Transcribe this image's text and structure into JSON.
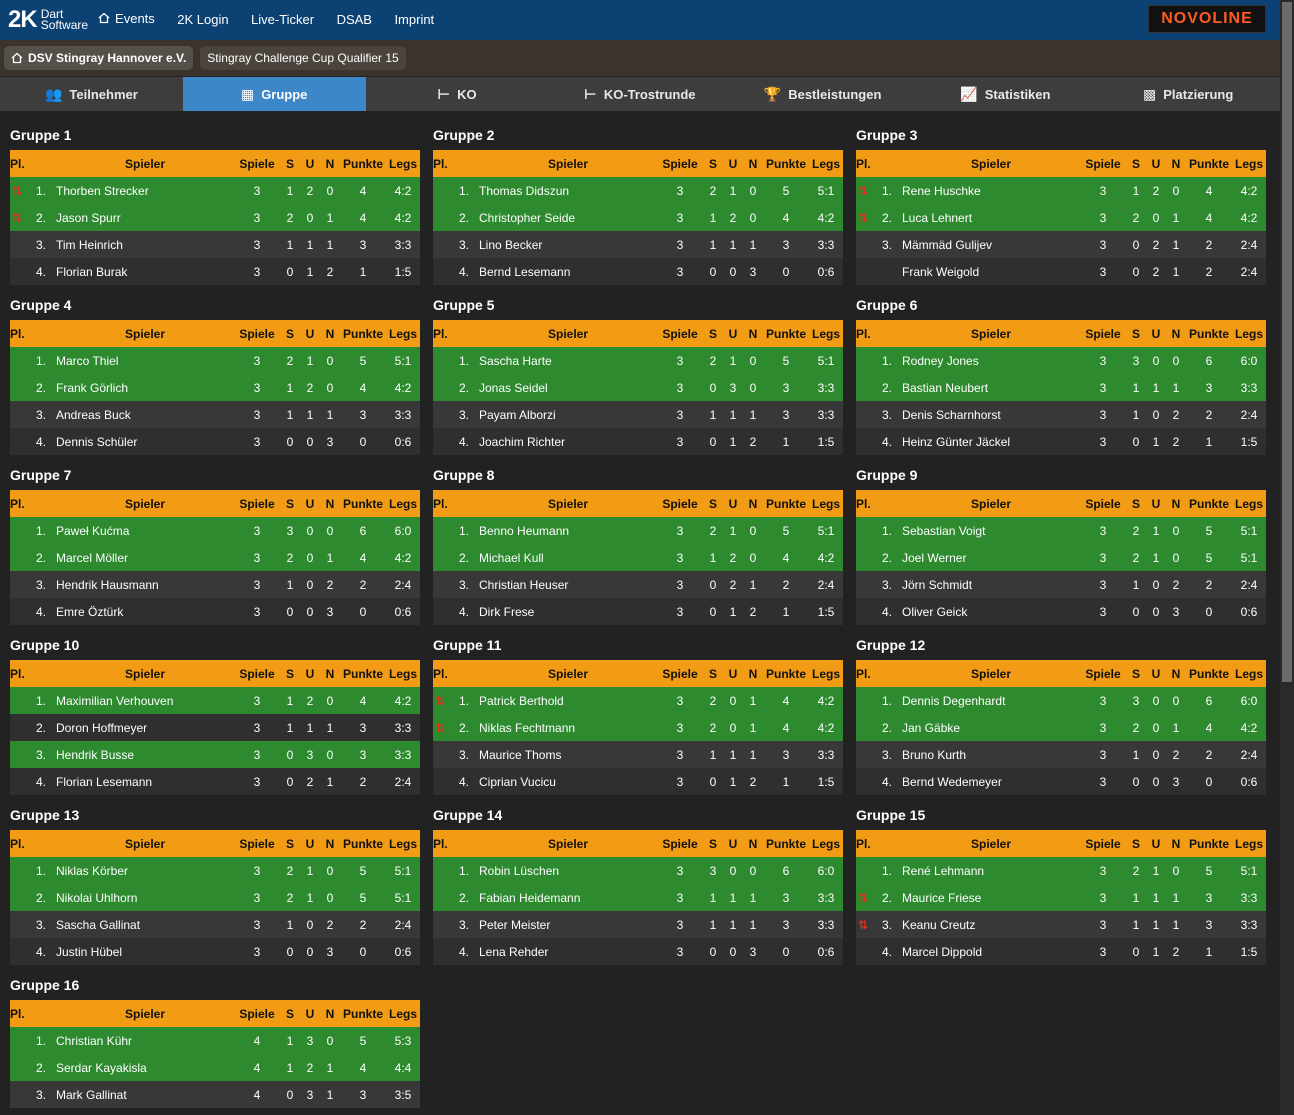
{
  "nav": {
    "logo_mark": "2K",
    "logo_line1": "Dart",
    "logo_line2": "Software",
    "items": [
      "Events",
      "2K Login",
      "Live-Ticker",
      "DSAB",
      "Imprint"
    ],
    "sponsor": "NOVOLINE"
  },
  "breadcrumb": [
    "DSV Stingray Hannover e.V.",
    "Stingray Challenge Cup Qualifier 15"
  ],
  "tabs": [
    "Teilnehmer",
    "Gruppe",
    "KO",
    "KO-Trostrunde",
    "Bestleistungen",
    "Statistiken",
    "Platzierung"
  ],
  "headers": [
    "Pl.",
    "Spieler",
    "Spiele",
    "S",
    "U",
    "N",
    "Punkte",
    "Legs"
  ],
  "groups": [
    {
      "title": "Gruppe 1",
      "rows": [
        {
          "pl": "1.",
          "arrow": "⇅",
          "name": "Thorben Strecker",
          "sp": "3",
          "s": "1",
          "u": "2",
          "n": "0",
          "pk": "4",
          "lg": "4:2",
          "q": true
        },
        {
          "pl": "2.",
          "arrow": "⇅",
          "name": "Jason Spurr",
          "sp": "3",
          "s": "2",
          "u": "0",
          "n": "1",
          "pk": "4",
          "lg": "4:2",
          "q": true
        },
        {
          "pl": "3.",
          "arrow": "",
          "name": "Tim Heinrich",
          "sp": "3",
          "s": "1",
          "u": "1",
          "n": "1",
          "pk": "3",
          "lg": "3:3",
          "q": false
        },
        {
          "pl": "4.",
          "arrow": "",
          "name": "Florian Burak",
          "sp": "3",
          "s": "0",
          "u": "1",
          "n": "2",
          "pk": "1",
          "lg": "1:5",
          "q": false
        }
      ]
    },
    {
      "title": "Gruppe 2",
      "rows": [
        {
          "pl": "1.",
          "arrow": "",
          "name": "Thomas Didszun",
          "sp": "3",
          "s": "2",
          "u": "1",
          "n": "0",
          "pk": "5",
          "lg": "5:1",
          "q": true
        },
        {
          "pl": "2.",
          "arrow": "",
          "name": "Christopher Seide",
          "sp": "3",
          "s": "1",
          "u": "2",
          "n": "0",
          "pk": "4",
          "lg": "4:2",
          "q": true
        },
        {
          "pl": "3.",
          "arrow": "",
          "name": "Lino Becker",
          "sp": "3",
          "s": "1",
          "u": "1",
          "n": "1",
          "pk": "3",
          "lg": "3:3",
          "q": false
        },
        {
          "pl": "4.",
          "arrow": "",
          "name": "Bernd Lesemann",
          "sp": "3",
          "s": "0",
          "u": "0",
          "n": "3",
          "pk": "0",
          "lg": "0:6",
          "q": false
        }
      ]
    },
    {
      "title": "Gruppe 3",
      "rows": [
        {
          "pl": "1.",
          "arrow": "⇅",
          "name": "Rene Huschke",
          "sp": "3",
          "s": "1",
          "u": "2",
          "n": "0",
          "pk": "4",
          "lg": "4:2",
          "q": true
        },
        {
          "pl": "2.",
          "arrow": "⇅",
          "name": "Luca Lehnert",
          "sp": "3",
          "s": "2",
          "u": "0",
          "n": "1",
          "pk": "4",
          "lg": "4:2",
          "q": true
        },
        {
          "pl": "3.",
          "arrow": "",
          "name": "Mämmäd Gulijev",
          "sp": "3",
          "s": "0",
          "u": "2",
          "n": "1",
          "pk": "2",
          "lg": "2:4",
          "q": false
        },
        {
          "pl": "",
          "arrow": "",
          "name": "Frank Weigold",
          "sp": "3",
          "s": "0",
          "u": "2",
          "n": "1",
          "pk": "2",
          "lg": "2:4",
          "q": false
        }
      ]
    },
    {
      "title": "Gruppe 4",
      "rows": [
        {
          "pl": "1.",
          "arrow": "",
          "name": "Marco Thiel",
          "sp": "3",
          "s": "2",
          "u": "1",
          "n": "0",
          "pk": "5",
          "lg": "5:1",
          "q": true
        },
        {
          "pl": "2.",
          "arrow": "",
          "name": "Frank Görlich",
          "sp": "3",
          "s": "1",
          "u": "2",
          "n": "0",
          "pk": "4",
          "lg": "4:2",
          "q": true
        },
        {
          "pl": "3.",
          "arrow": "",
          "name": "Andreas Buck",
          "sp": "3",
          "s": "1",
          "u": "1",
          "n": "1",
          "pk": "3",
          "lg": "3:3",
          "q": false
        },
        {
          "pl": "4.",
          "arrow": "",
          "name": "Dennis Schüler",
          "sp": "3",
          "s": "0",
          "u": "0",
          "n": "3",
          "pk": "0",
          "lg": "0:6",
          "q": false
        }
      ]
    },
    {
      "title": "Gruppe 5",
      "rows": [
        {
          "pl": "1.",
          "arrow": "",
          "name": "Sascha Harte",
          "sp": "3",
          "s": "2",
          "u": "1",
          "n": "0",
          "pk": "5",
          "lg": "5:1",
          "q": true
        },
        {
          "pl": "2.",
          "arrow": "",
          "name": "Jonas Seidel",
          "sp": "3",
          "s": "0",
          "u": "3",
          "n": "0",
          "pk": "3",
          "lg": "3:3",
          "q": true
        },
        {
          "pl": "3.",
          "arrow": "",
          "name": "Payam Alborzi",
          "sp": "3",
          "s": "1",
          "u": "1",
          "n": "1",
          "pk": "3",
          "lg": "3:3",
          "q": false
        },
        {
          "pl": "4.",
          "arrow": "",
          "name": "Joachim Richter",
          "sp": "3",
          "s": "0",
          "u": "1",
          "n": "2",
          "pk": "1",
          "lg": "1:5",
          "q": false
        }
      ]
    },
    {
      "title": "Gruppe 6",
      "rows": [
        {
          "pl": "1.",
          "arrow": "",
          "name": "Rodney Jones",
          "sp": "3",
          "s": "3",
          "u": "0",
          "n": "0",
          "pk": "6",
          "lg": "6:0",
          "q": true
        },
        {
          "pl": "2.",
          "arrow": "",
          "name": "Bastian Neubert",
          "sp": "3",
          "s": "1",
          "u": "1",
          "n": "1",
          "pk": "3",
          "lg": "3:3",
          "q": true
        },
        {
          "pl": "3.",
          "arrow": "",
          "name": "Denis Scharnhorst",
          "sp": "3",
          "s": "1",
          "u": "0",
          "n": "2",
          "pk": "2",
          "lg": "2:4",
          "q": false
        },
        {
          "pl": "4.",
          "arrow": "",
          "name": "Heinz Günter Jäckel",
          "sp": "3",
          "s": "0",
          "u": "1",
          "n": "2",
          "pk": "1",
          "lg": "1:5",
          "q": false
        }
      ]
    },
    {
      "title": "Gruppe 7",
      "rows": [
        {
          "pl": "1.",
          "arrow": "",
          "name": "Paweł Kućma",
          "sp": "3",
          "s": "3",
          "u": "0",
          "n": "0",
          "pk": "6",
          "lg": "6:0",
          "q": true
        },
        {
          "pl": "2.",
          "arrow": "",
          "name": "Marcel Möller",
          "sp": "3",
          "s": "2",
          "u": "0",
          "n": "1",
          "pk": "4",
          "lg": "4:2",
          "q": true
        },
        {
          "pl": "3.",
          "arrow": "",
          "name": "Hendrik Hausmann",
          "sp": "3",
          "s": "1",
          "u": "0",
          "n": "2",
          "pk": "2",
          "lg": "2:4",
          "q": false
        },
        {
          "pl": "4.",
          "arrow": "",
          "name": "Emre Öztürk",
          "sp": "3",
          "s": "0",
          "u": "0",
          "n": "3",
          "pk": "0",
          "lg": "0:6",
          "q": false
        }
      ]
    },
    {
      "title": "Gruppe 8",
      "rows": [
        {
          "pl": "1.",
          "arrow": "",
          "name": "Benno Heumann",
          "sp": "3",
          "s": "2",
          "u": "1",
          "n": "0",
          "pk": "5",
          "lg": "5:1",
          "q": true
        },
        {
          "pl": "2.",
          "arrow": "",
          "name": "Michael Kull",
          "sp": "3",
          "s": "1",
          "u": "2",
          "n": "0",
          "pk": "4",
          "lg": "4:2",
          "q": true
        },
        {
          "pl": "3.",
          "arrow": "",
          "name": "Christian Heuser",
          "sp": "3",
          "s": "0",
          "u": "2",
          "n": "1",
          "pk": "2",
          "lg": "2:4",
          "q": false
        },
        {
          "pl": "4.",
          "arrow": "",
          "name": "Dirk Frese",
          "sp": "3",
          "s": "0",
          "u": "1",
          "n": "2",
          "pk": "1",
          "lg": "1:5",
          "q": false
        }
      ]
    },
    {
      "title": "Gruppe 9",
      "rows": [
        {
          "pl": "1.",
          "arrow": "",
          "name": "Sebastian Voigt",
          "sp": "3",
          "s": "2",
          "u": "1",
          "n": "0",
          "pk": "5",
          "lg": "5:1",
          "q": true
        },
        {
          "pl": "2.",
          "arrow": "",
          "name": "Joel Werner",
          "sp": "3",
          "s": "2",
          "u": "1",
          "n": "0",
          "pk": "5",
          "lg": "5:1",
          "q": true
        },
        {
          "pl": "3.",
          "arrow": "",
          "name": "Jörn Schmidt",
          "sp": "3",
          "s": "1",
          "u": "0",
          "n": "2",
          "pk": "2",
          "lg": "2:4",
          "q": false
        },
        {
          "pl": "4.",
          "arrow": "",
          "name": "Oliver Geick",
          "sp": "3",
          "s": "0",
          "u": "0",
          "n": "3",
          "pk": "0",
          "lg": "0:6",
          "q": false
        }
      ]
    },
    {
      "title": "Gruppe 10",
      "rows": [
        {
          "pl": "1.",
          "arrow": "",
          "name": "Maximilian Verhouven",
          "sp": "3",
          "s": "1",
          "u": "2",
          "n": "0",
          "pk": "4",
          "lg": "4:2",
          "q": true
        },
        {
          "pl": "2.",
          "arrow": "",
          "name": "Doron Hoffmeyer",
          "sp": "3",
          "s": "1",
          "u": "1",
          "n": "1",
          "pk": "3",
          "lg": "3:3",
          "q": false
        },
        {
          "pl": "3.",
          "arrow": "",
          "name": "Hendrik Busse",
          "sp": "3",
          "s": "0",
          "u": "3",
          "n": "0",
          "pk": "3",
          "lg": "3:3",
          "q": true
        },
        {
          "pl": "4.",
          "arrow": "",
          "name": "Florian Lesemann",
          "sp": "3",
          "s": "0",
          "u": "2",
          "n": "1",
          "pk": "2",
          "lg": "2:4",
          "q": false
        }
      ]
    },
    {
      "title": "Gruppe 11",
      "rows": [
        {
          "pl": "1.",
          "arrow": "⇅",
          "name": "Patrick Berthold",
          "sp": "3",
          "s": "2",
          "u": "0",
          "n": "1",
          "pk": "4",
          "lg": "4:2",
          "q": true
        },
        {
          "pl": "2.",
          "arrow": "⇅",
          "name": "Niklas Fechtmann",
          "sp": "3",
          "s": "2",
          "u": "0",
          "n": "1",
          "pk": "4",
          "lg": "4:2",
          "q": true
        },
        {
          "pl": "3.",
          "arrow": "",
          "name": "Maurice Thoms",
          "sp": "3",
          "s": "1",
          "u": "1",
          "n": "1",
          "pk": "3",
          "lg": "3:3",
          "q": false
        },
        {
          "pl": "4.",
          "arrow": "",
          "name": "Ciprian Vucicu",
          "sp": "3",
          "s": "0",
          "u": "1",
          "n": "2",
          "pk": "1",
          "lg": "1:5",
          "q": false
        }
      ]
    },
    {
      "title": "Gruppe 12",
      "rows": [
        {
          "pl": "1.",
          "arrow": "",
          "name": "Dennis Degenhardt",
          "sp": "3",
          "s": "3",
          "u": "0",
          "n": "0",
          "pk": "6",
          "lg": "6:0",
          "q": true
        },
        {
          "pl": "2.",
          "arrow": "",
          "name": "Jan Gäbke",
          "sp": "3",
          "s": "2",
          "u": "0",
          "n": "1",
          "pk": "4",
          "lg": "4:2",
          "q": true
        },
        {
          "pl": "3.",
          "arrow": "",
          "name": "Bruno Kurth",
          "sp": "3",
          "s": "1",
          "u": "0",
          "n": "2",
          "pk": "2",
          "lg": "2:4",
          "q": false
        },
        {
          "pl": "4.",
          "arrow": "",
          "name": "Bernd Wedemeyer",
          "sp": "3",
          "s": "0",
          "u": "0",
          "n": "3",
          "pk": "0",
          "lg": "0:6",
          "q": false
        }
      ]
    },
    {
      "title": "Gruppe 13",
      "rows": [
        {
          "pl": "1.",
          "arrow": "",
          "name": "Niklas Körber",
          "sp": "3",
          "s": "2",
          "u": "1",
          "n": "0",
          "pk": "5",
          "lg": "5:1",
          "q": true
        },
        {
          "pl": "2.",
          "arrow": "",
          "name": "Nikolai Uhlhorn",
          "sp": "3",
          "s": "2",
          "u": "1",
          "n": "0",
          "pk": "5",
          "lg": "5:1",
          "q": true
        },
        {
          "pl": "3.",
          "arrow": "",
          "name": "Sascha Gallinat",
          "sp": "3",
          "s": "1",
          "u": "0",
          "n": "2",
          "pk": "2",
          "lg": "2:4",
          "q": false
        },
        {
          "pl": "4.",
          "arrow": "",
          "name": "Justin Hübel",
          "sp": "3",
          "s": "0",
          "u": "0",
          "n": "3",
          "pk": "0",
          "lg": "0:6",
          "q": false
        }
      ]
    },
    {
      "title": "Gruppe 14",
      "rows": [
        {
          "pl": "1.",
          "arrow": "",
          "name": "Robin Lüschen",
          "sp": "3",
          "s": "3",
          "u": "0",
          "n": "0",
          "pk": "6",
          "lg": "6:0",
          "q": true
        },
        {
          "pl": "2.",
          "arrow": "",
          "name": "Fabian Heidemann",
          "sp": "3",
          "s": "1",
          "u": "1",
          "n": "1",
          "pk": "3",
          "lg": "3:3",
          "q": true
        },
        {
          "pl": "3.",
          "arrow": "",
          "name": "Peter Meister",
          "sp": "3",
          "s": "1",
          "u": "1",
          "n": "1",
          "pk": "3",
          "lg": "3:3",
          "q": false
        },
        {
          "pl": "4.",
          "arrow": "",
          "name": "Lena Rehder",
          "sp": "3",
          "s": "0",
          "u": "0",
          "n": "3",
          "pk": "0",
          "lg": "0:6",
          "q": false
        }
      ]
    },
    {
      "title": "Gruppe 15",
      "rows": [
        {
          "pl": "1.",
          "arrow": "",
          "name": "René Lehmann",
          "sp": "3",
          "s": "2",
          "u": "1",
          "n": "0",
          "pk": "5",
          "lg": "5:1",
          "q": true
        },
        {
          "pl": "2.",
          "arrow": "⇅",
          "name": "Maurice Friese",
          "sp": "3",
          "s": "1",
          "u": "1",
          "n": "1",
          "pk": "3",
          "lg": "3:3",
          "q": true
        },
        {
          "pl": "3.",
          "arrow": "⇅",
          "name": "Keanu Creutz",
          "sp": "3",
          "s": "1",
          "u": "1",
          "n": "1",
          "pk": "3",
          "lg": "3:3",
          "q": false
        },
        {
          "pl": "4.",
          "arrow": "",
          "name": "Marcel Dippold",
          "sp": "3",
          "s": "0",
          "u": "1",
          "n": "2",
          "pk": "1",
          "lg": "1:5",
          "q": false
        }
      ]
    },
    {
      "title": "Gruppe 16",
      "rows": [
        {
          "pl": "1.",
          "arrow": "",
          "name": "Christian Kühr",
          "sp": "4",
          "s": "1",
          "u": "3",
          "n": "0",
          "pk": "5",
          "lg": "5:3",
          "q": true
        },
        {
          "pl": "2.",
          "arrow": "",
          "name": "Serdar Kayakisla",
          "sp": "4",
          "s": "1",
          "u": "2",
          "n": "1",
          "pk": "4",
          "lg": "4:4",
          "q": true
        },
        {
          "pl": "3.",
          "arrow": "",
          "name": "Mark Gallinat",
          "sp": "4",
          "s": "0",
          "u": "3",
          "n": "1",
          "pk": "3",
          "lg": "3:5",
          "q": false
        }
      ]
    }
  ],
  "colors": {
    "header": "#f29c16",
    "qualified": "#2d8a2f",
    "nav": "#0c4173",
    "active_tab": "#3d87c9"
  }
}
